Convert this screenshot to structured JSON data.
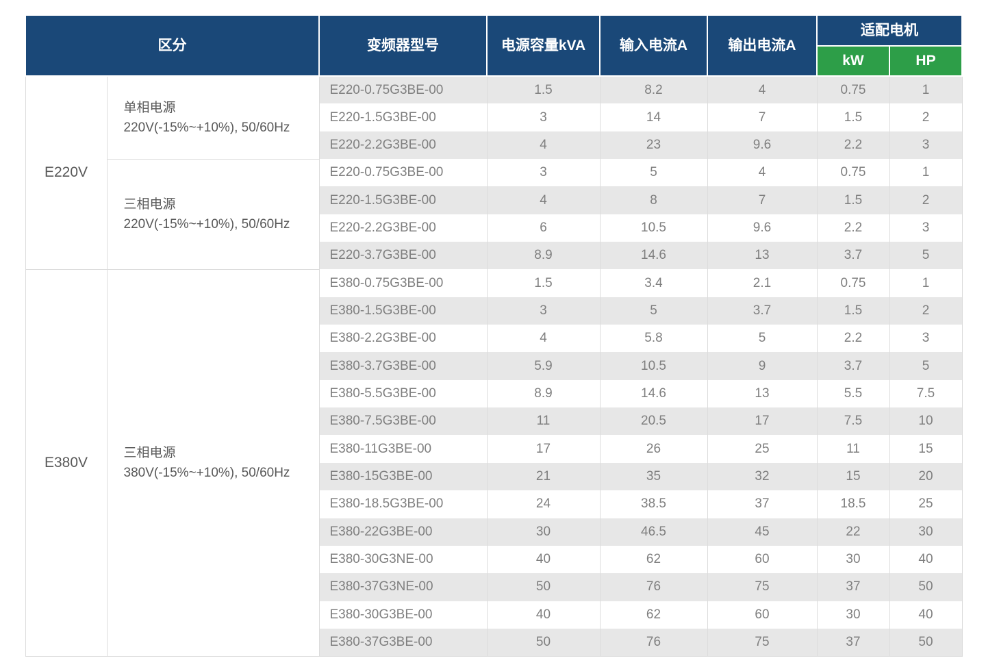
{
  "header": {
    "col_category": "区分",
    "col_model": "变频器型号",
    "col_capacity": "电源容量kVA",
    "col_input": "输入电流A",
    "col_output": "输出电流A",
    "col_motor": "适配电机",
    "col_kw": "kW",
    "col_hp": "HP"
  },
  "colors": {
    "header_navy": "#1a4878",
    "header_green": "#2d9e48",
    "row_stripe": "#e7e7e7",
    "grid_line": "#dcdcdc",
    "data_text": "#7f7f7f",
    "label_text": "#595959",
    "header_text": "#ffffff"
  },
  "sections": [
    {
      "voltage_class": "E220V",
      "groups": [
        {
          "power_type": "单相电源",
          "power_spec": "220V(-15%~+10%), 50/60Hz",
          "rows": [
            {
              "model": "E220-0.75G3BE-00",
              "kva": "1.5",
              "input_a": "8.2",
              "output_a": "4",
              "kw": "0.75",
              "hp": "1"
            },
            {
              "model": "E220-1.5G3BE-00",
              "kva": "3",
              "input_a": "14",
              "output_a": "7",
              "kw": "1.5",
              "hp": "2"
            },
            {
              "model": "E220-2.2G3BE-00",
              "kva": "4",
              "input_a": "23",
              "output_a": "9.6",
              "kw": "2.2",
              "hp": "3"
            }
          ]
        },
        {
          "power_type": "三相电源",
          "power_spec": "220V(-15%~+10%), 50/60Hz",
          "rows": [
            {
              "model": "E220-0.75G3BE-00",
              "kva": "3",
              "input_a": "5",
              "output_a": "4",
              "kw": "0.75",
              "hp": "1"
            },
            {
              "model": "E220-1.5G3BE-00",
              "kva": "4",
              "input_a": "8",
              "output_a": "7",
              "kw": "1.5",
              "hp": "2"
            },
            {
              "model": "E220-2.2G3BE-00",
              "kva": "6",
              "input_a": "10.5",
              "output_a": "9.6",
              "kw": "2.2",
              "hp": "3"
            },
            {
              "model": "E220-3.7G3BE-00",
              "kva": "8.9",
              "input_a": "14.6",
              "output_a": "13",
              "kw": "3.7",
              "hp": "5"
            }
          ]
        }
      ]
    },
    {
      "voltage_class": "E380V",
      "groups": [
        {
          "power_type": "三相电源",
          "power_spec": "380V(-15%~+10%), 50/60Hz",
          "rows": [
            {
              "model": "E380-0.75G3BE-00",
              "kva": "1.5",
              "input_a": "3.4",
              "output_a": "2.1",
              "kw": "0.75",
              "hp": "1"
            },
            {
              "model": "E380-1.5G3BE-00",
              "kva": "3",
              "input_a": "5",
              "output_a": "3.7",
              "kw": "1.5",
              "hp": "2"
            },
            {
              "model": "E380-2.2G3BE-00",
              "kva": "4",
              "input_a": "5.8",
              "output_a": "5",
              "kw": "2.2",
              "hp": "3"
            },
            {
              "model": "E380-3.7G3BE-00",
              "kva": "5.9",
              "input_a": "10.5",
              "output_a": "9",
              "kw": "3.7",
              "hp": "5"
            },
            {
              "model": "E380-5.5G3BE-00",
              "kva": "8.9",
              "input_a": "14.6",
              "output_a": "13",
              "kw": "5.5",
              "hp": "7.5"
            },
            {
              "model": "E380-7.5G3BE-00",
              "kva": "11",
              "input_a": "20.5",
              "output_a": "17",
              "kw": "7.5",
              "hp": "10"
            },
            {
              "model": "E380-11G3BE-00",
              "kva": "17",
              "input_a": "26",
              "output_a": "25",
              "kw": "11",
              "hp": "15"
            },
            {
              "model": "E380-15G3BE-00",
              "kva": "21",
              "input_a": "35",
              "output_a": "32",
              "kw": "15",
              "hp": "20"
            },
            {
              "model": "E380-18.5G3BE-00",
              "kva": "24",
              "input_a": "38.5",
              "output_a": "37",
              "kw": "18.5",
              "hp": "25"
            },
            {
              "model": "E380-22G3BE-00",
              "kva": "30",
              "input_a": "46.5",
              "output_a": "45",
              "kw": "22",
              "hp": "30"
            },
            {
              "model": "E380-30G3NE-00",
              "kva": "40",
              "input_a": "62",
              "output_a": "60",
              "kw": "30",
              "hp": "40"
            },
            {
              "model": "E380-37G3NE-00",
              "kva": "50",
              "input_a": "76",
              "output_a": "75",
              "kw": "37",
              "hp": "50"
            },
            {
              "model": "E380-30G3BE-00",
              "kva": "40",
              "input_a": "62",
              "output_a": "60",
              "kw": "30",
              "hp": "40"
            },
            {
              "model": "E380-37G3BE-00",
              "kva": "50",
              "input_a": "76",
              "output_a": "75",
              "kw": "37",
              "hp": "50"
            }
          ]
        }
      ]
    }
  ]
}
